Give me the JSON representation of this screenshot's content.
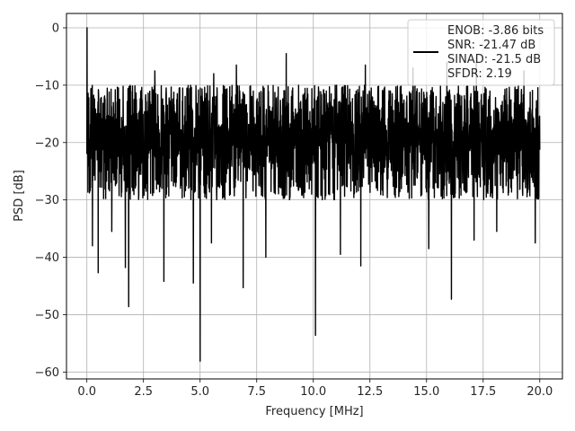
{
  "chart_data": {
    "type": "line",
    "xlabel": "Frequency [MHz]",
    "ylabel": "PSD [dB]",
    "xlim": [
      -0.9,
      21.0
    ],
    "ylim": [
      -61.2,
      2.5
    ],
    "xticks": [
      0.0,
      2.5,
      5.0,
      7.5,
      10.0,
      12.5,
      15.0,
      17.5,
      20.0
    ],
    "xtick_labels": [
      "0.0",
      "2.5",
      "5.0",
      "7.5",
      "10.0",
      "12.5",
      "15.0",
      "17.5",
      "20.0"
    ],
    "yticks": [
      0,
      -10,
      -20,
      -30,
      -40,
      -50,
      -60
    ],
    "ytick_labels": [
      "0",
      "−10",
      "−20",
      "−30",
      "−40",
      "−50",
      "−60"
    ],
    "grid": true,
    "legend_position": "top-right",
    "series": [
      {
        "color": "#000000",
        "legend_lines": [
          "ENOB: -3.86 bits",
          "SNR: -21.47 dB",
          "SINAD: -21.5 dB",
          "SFDR: 2.19"
        ],
        "x_range": [
          0.0,
          20.0
        ],
        "peak": {
          "x": 0.0,
          "y": 0.0
        },
        "band_top": -16,
        "band_bottom": -23,
        "upper_envelope_typical": -10,
        "lower_envelope_typical": -30,
        "notable_dips": [
          {
            "x": 0.25,
            "y": -38.0
          },
          {
            "x": 0.5,
            "y": -42.7
          },
          {
            "x": 1.1,
            "y": -35.5
          },
          {
            "x": 1.7,
            "y": -41.8
          },
          {
            "x": 1.85,
            "y": -48.6
          },
          {
            "x": 3.4,
            "y": -44.2
          },
          {
            "x": 4.7,
            "y": -44.5
          },
          {
            "x": 5.0,
            "y": -58.1
          },
          {
            "x": 5.5,
            "y": -37.5
          },
          {
            "x": 6.9,
            "y": -45.3
          },
          {
            "x": 7.9,
            "y": -40.0
          },
          {
            "x": 10.1,
            "y": -53.6
          },
          {
            "x": 11.2,
            "y": -39.5
          },
          {
            "x": 12.1,
            "y": -41.5
          },
          {
            "x": 15.1,
            "y": -38.5
          },
          {
            "x": 16.1,
            "y": -47.3
          },
          {
            "x": 17.1,
            "y": -37.0
          },
          {
            "x": 18.1,
            "y": -35.5
          },
          {
            "x": 19.8,
            "y": -37.5
          }
        ],
        "notable_peaks": [
          {
            "x": 3.0,
            "y": -7.5
          },
          {
            "x": 5.6,
            "y": -8.0
          },
          {
            "x": 6.6,
            "y": -6.5
          },
          {
            "x": 8.8,
            "y": -4.5
          },
          {
            "x": 12.3,
            "y": -6.5
          },
          {
            "x": 14.4,
            "y": -7.0
          },
          {
            "x": 15.9,
            "y": -6.0
          },
          {
            "x": 17.2,
            "y": -5.0
          },
          {
            "x": 19.3,
            "y": -7.5
          }
        ]
      }
    ]
  }
}
